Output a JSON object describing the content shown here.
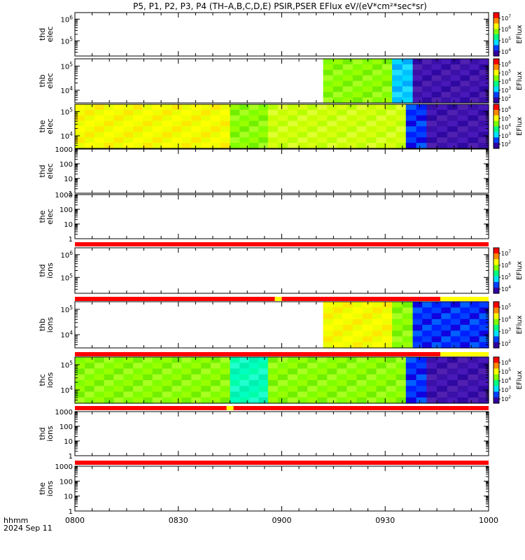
{
  "title": "P5, P1, P2, P3, P4 (TH–A,B,C,D,E) PSIR,PSER EFlux eV/(eV*cm²*sec*sr)",
  "x_axis": {
    "label": "hhmm",
    "date": "2024 Sep 11",
    "ticks": [
      "0800",
      "0830",
      "0900",
      "0930",
      "1000"
    ]
  },
  "colorbar_label": "EFlux",
  "chart_data": {
    "type": "heatmap",
    "x_unit": "hhmm",
    "xlim": [
      "0800",
      "1000"
    ],
    "panels": [
      {
        "ylabel": [
          "thd",
          "elec"
        ],
        "ylim": [
          20000,
          2000000
        ],
        "yticks": [
          "10^5",
          "10^6"
        ],
        "cbar": [
          "10^4",
          "10^5",
          "10^6",
          "10^7"
        ],
        "has_data": false
      },
      {
        "ylabel": [
          "thb",
          "elec"
        ],
        "ylim": [
          3000,
          200000
        ],
        "yticks": [
          "10^4",
          "10^5"
        ],
        "cbar": [
          "10^2",
          "10^3",
          "10^4",
          "10^5",
          "10^6"
        ],
        "has_data": true,
        "data_start": "0912",
        "segments": [
          [
            "0912",
            "0932",
            "green"
          ],
          [
            "0932",
            "0938",
            "lightblue"
          ],
          [
            "0938",
            "1000",
            "purple"
          ]
        ]
      },
      {
        "ylabel": [
          "the",
          "elec"
        ],
        "ylim": [
          3000,
          200000
        ],
        "yticks": [
          "10^4",
          "10^5"
        ],
        "cbar": [
          "10^2",
          "10^3",
          "10^4",
          "10^5",
          "10^6"
        ],
        "has_data": true,
        "data_start": "0800",
        "segments": [
          [
            "0800",
            "0845",
            "yellow"
          ],
          [
            "0845",
            "0856",
            "green"
          ],
          [
            "0856",
            "0936",
            "yellowgreen"
          ],
          [
            "0936",
            "0942",
            "blue"
          ],
          [
            "0942",
            "1000",
            "purple"
          ]
        ]
      },
      {
        "ylabel": [
          "thd",
          "elec"
        ],
        "ylim": [
          1,
          1000
        ],
        "yticks": [
          "1",
          "10",
          "100",
          "1000"
        ],
        "cbar": null,
        "has_data": false
      },
      {
        "ylabel": [
          "the",
          "elec"
        ],
        "ylim": [
          1,
          1000
        ],
        "yticks": [
          "1",
          "10",
          "100",
          "1000"
        ],
        "cbar": null,
        "has_data": false
      },
      {
        "ylabel": [
          "thd",
          "ions"
        ],
        "ylim": [
          20000,
          2000000
        ],
        "yticks": [
          "10^5",
          "10^6"
        ],
        "cbar": [
          "10^4",
          "10^5",
          "10^6",
          "10^7"
        ],
        "has_data": false
      },
      {
        "ylabel": [
          "thb",
          "ions"
        ],
        "ylim": [
          3000,
          200000
        ],
        "yticks": [
          "10^4",
          "10^5"
        ],
        "cbar": [
          "10^2",
          "10^3",
          "10^4",
          "10^5"
        ],
        "has_data": true,
        "data_start": "0912",
        "segments": [
          [
            "0912",
            "0932",
            "yellow"
          ],
          [
            "0932",
            "0938",
            "green"
          ],
          [
            "0938",
            "1000",
            "blue"
          ]
        ]
      },
      {
        "ylabel": [
          "thc",
          "ions"
        ],
        "ylim": [
          3000,
          200000
        ],
        "yticks": [
          "10^4",
          "10^5"
        ],
        "cbar": [
          "10^2",
          "10^3",
          "10^4",
          "10^5",
          "10^6"
        ],
        "has_data": true,
        "data_start": "0800",
        "segments": [
          [
            "0800",
            "0845",
            "green"
          ],
          [
            "0845",
            "0856",
            "cyan"
          ],
          [
            "0856",
            "0936",
            "green"
          ],
          [
            "0936",
            "0942",
            "blue"
          ],
          [
            "0942",
            "1000",
            "purple"
          ]
        ]
      },
      {
        "ylabel": [
          "thd",
          "ions"
        ],
        "ylim": [
          1,
          1000
        ],
        "yticks": [
          "1",
          "10",
          "100",
          "1000"
        ],
        "cbar": null,
        "has_data": false
      },
      {
        "ylabel": [
          "the",
          "ions"
        ],
        "ylim": [
          1,
          1000
        ],
        "yticks": [
          "1",
          "10",
          "100",
          "1000"
        ],
        "cbar": null,
        "has_data": false
      }
    ],
    "status_bars": [
      {
        "after_panel": 4,
        "segments": [
          [
            "0800",
            "1000",
            "#ff0000"
          ]
        ]
      },
      {
        "after_panel": 5,
        "segments": [
          [
            "0800",
            "0858",
            "#ff0000"
          ],
          [
            "0858",
            "0900",
            "#ffff00"
          ],
          [
            "0900",
            "0946",
            "#ff0000"
          ],
          [
            "0946",
            "1000",
            "#ffff00"
          ]
        ]
      },
      {
        "after_panel": 6,
        "segments": [
          [
            "0800",
            "0946",
            "#ff0000"
          ],
          [
            "0946",
            "1000",
            "#ffff00"
          ]
        ]
      },
      {
        "after_panel": 7,
        "segments": [
          [
            "0800",
            "0844",
            "#ff0000"
          ],
          [
            "0844",
            "0846",
            "#ffff00"
          ],
          [
            "0846",
            "1000",
            "#ff0000"
          ]
        ]
      },
      {
        "after_panel": 8,
        "segments": [
          [
            "0800",
            "1000",
            "#ff0000"
          ]
        ]
      }
    ]
  }
}
